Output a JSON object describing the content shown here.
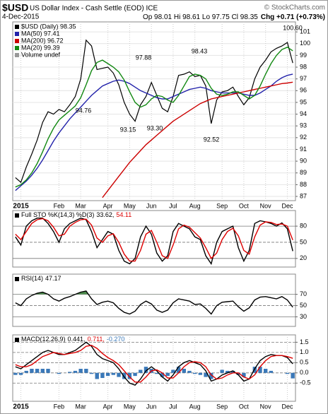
{
  "header": {
    "symbol": "$USD",
    "name": "US Dollar Index - Cash Settle (EOD) ICE",
    "copyright": "© StockCharts.com",
    "date": "4-Dec-2015",
    "ohlc": "Op 98.01 Hi 98.61 Lo 97.75 Cl 98.35",
    "change": "Chg +0.71 (+0.73%)"
  },
  "chart_data": [
    {
      "type": "line",
      "grid": true,
      "legend": "upper left",
      "legend_extra": "Volume undef",
      "categories": [
        null,
        "2015",
        null,
        null,
        null,
        null,
        null,
        null,
        "Feb",
        null,
        null,
        null,
        "Mar",
        null,
        null,
        null,
        null,
        "Apr",
        null,
        null,
        null,
        "May",
        null,
        null,
        null,
        "Jun",
        null,
        null,
        null,
        "Jul",
        null,
        null,
        null,
        "Aug",
        null,
        null,
        null,
        null,
        "Sep",
        null,
        null,
        null,
        "Oct",
        null,
        null,
        null,
        "Nov",
        null,
        null,
        null,
        "Dec",
        null
      ],
      "ylim": [
        86.64,
        101.85
      ],
      "yticks": [
        87,
        88,
        89,
        90,
        91,
        92,
        93,
        94,
        95,
        96,
        97,
        98,
        99,
        100,
        101
      ],
      "annotations": [
        "94.76",
        "97.88",
        "93.15",
        "93.30",
        "98.43",
        "92.52",
        "100.60"
      ],
      "series": [
        {
          "name": "$USD (Daily) 98.35",
          "color": "#000000",
          "values": [
            88.6,
            88.2,
            89.5,
            90.6,
            91.8,
            93.3,
            94.2,
            94.0,
            94.4,
            94.2,
            94.8,
            95.5,
            97.0,
            100.3,
            99.8,
            97.8,
            97.9,
            98.0,
            97.5,
            96.5,
            95.0,
            94.0,
            93.4,
            94.8,
            95.5,
            96.7,
            95.6,
            94.5,
            94.2,
            95.5,
            97.3,
            97.4,
            97.6,
            97.2,
            97.3,
            96.4,
            93.2,
            95.2,
            95.9,
            96.0,
            96.3,
            95.5,
            94.8,
            95.4,
            97.0,
            98.0,
            98.6,
            99.3,
            99.6,
            99.8,
            100.1,
            98.35
          ]
        },
        {
          "name": "MA(50) 97.41",
          "color": "#2222aa",
          "values": [
            87.5,
            87.9,
            88.3,
            88.8,
            89.4,
            90.1,
            90.9,
            91.7,
            92.4,
            93.0,
            93.6,
            94.1,
            94.6,
            95.1,
            95.6,
            96.0,
            96.4,
            96.6,
            96.8,
            96.9,
            96.8,
            96.6,
            96.3,
            96.0,
            95.8,
            95.6,
            95.4,
            95.3,
            95.3,
            95.5,
            95.7,
            95.9,
            96.1,
            96.2,
            96.3,
            96.2,
            96.0,
            95.9,
            95.8,
            95.8,
            95.8,
            95.8,
            95.7,
            95.6,
            95.6,
            95.8,
            96.1,
            96.4,
            96.8,
            97.1,
            97.3,
            97.41
          ]
        },
        {
          "name": "MA(200) 96.72",
          "color": "#cc0000",
          "values": [
            null,
            null,
            null,
            null,
            null,
            null,
            null,
            null,
            null,
            null,
            null,
            null,
            null,
            null,
            null,
            null,
            86.9,
            87.5,
            88.1,
            88.7,
            89.3,
            89.9,
            90.4,
            90.9,
            91.4,
            91.8,
            92.2,
            92.6,
            93.0,
            93.4,
            93.7,
            94.0,
            94.3,
            94.6,
            94.9,
            95.1,
            95.3,
            95.4,
            95.5,
            95.6,
            95.7,
            95.8,
            95.9,
            96.0,
            96.1,
            96.2,
            96.3,
            96.4,
            96.5,
            96.6,
            96.65,
            96.72
          ]
        },
        {
          "name": "MA(20) 99.39",
          "color": "#118811",
          "values": [
            87.8,
            88.0,
            88.4,
            89.0,
            89.8,
            90.8,
            91.9,
            92.8,
            93.5,
            93.9,
            94.3,
            94.7,
            95.4,
            96.5,
            97.7,
            98.4,
            98.6,
            98.3,
            98.0,
            97.6,
            96.9,
            95.9,
            95.0,
            94.6,
            94.8,
            95.3,
            95.6,
            95.5,
            95.2,
            95.0,
            95.6,
            96.4,
            97.2,
            97.4,
            97.3,
            97.0,
            96.2,
            95.7,
            95.6,
            95.7,
            95.9,
            95.9,
            95.6,
            95.3,
            95.6,
            96.4,
            97.4,
            98.3,
            99.0,
            99.5,
            99.7,
            99.39
          ]
        }
      ]
    },
    {
      "type": "line",
      "title": "Full STO %K(14,3) %D(3)",
      "ylim": [
        4,
        109
      ],
      "yticks": [
        20,
        50,
        80
      ],
      "grid": true,
      "series": [
        {
          "label": "33.62,",
          "color": "#000000",
          "values": [
            60,
            45,
            80,
            90,
            95,
            95,
            85,
            70,
            50,
            75,
            85,
            90,
            95,
            92,
            70,
            40,
            55,
            70,
            65,
            35,
            15,
            10,
            20,
            60,
            80,
            65,
            30,
            15,
            25,
            70,
            85,
            80,
            75,
            60,
            55,
            25,
            10,
            50,
            70,
            75,
            80,
            40,
            15,
            35,
            85,
            90,
            88,
            85,
            80,
            86,
            75,
            33.62
          ]
        },
        {
          "label": "54.11",
          "color": "#dd0000",
          "values": [
            65,
            55,
            70,
            85,
            92,
            94,
            90,
            78,
            62,
            65,
            80,
            87,
            92,
            93,
            82,
            58,
            50,
            62,
            66,
            50,
            28,
            15,
            15,
            35,
            65,
            72,
            50,
            25,
            20,
            45,
            75,
            82,
            78,
            68,
            58,
            40,
            20,
            30,
            55,
            70,
            76,
            62,
            35,
            28,
            60,
            82,
            88,
            87,
            83,
            84,
            80,
            54.11
          ]
        }
      ]
    },
    {
      "type": "line",
      "title": "RSI(14)",
      "ylim": [
        13,
        106
      ],
      "yticks": [
        30,
        50,
        70
      ],
      "grid": true,
      "fill_above": 70,
      "fill_color": "#4f8f4f",
      "series": [
        {
          "label": "47.17",
          "color": "#000000",
          "values": [
            55,
            50,
            62,
            68,
            72,
            74,
            70,
            62,
            58,
            63,
            66,
            70,
            74,
            76,
            62,
            52,
            56,
            58,
            55,
            45,
            38,
            35,
            40,
            52,
            58,
            53,
            42,
            38,
            42,
            55,
            62,
            60,
            58,
            52,
            53,
            45,
            35,
            50,
            56,
            57,
            58,
            48,
            40,
            46,
            60,
            65,
            66,
            64,
            62,
            66,
            60,
            47.17
          ]
        }
      ]
    },
    {
      "type": "line",
      "title": "MACD(12,26,9)",
      "ylim": [
        -1.39,
        1.86
      ],
      "yticks": [
        1.5,
        {
          "value": 1,
          "label": "1.0"
        },
        0.5,
        {
          "value": 0,
          "label": "0.0"
        },
        -0.5
      ],
      "grid": true,
      "categories": [
        null,
        "2015",
        null,
        null,
        null,
        null,
        null,
        null,
        "Feb",
        null,
        null,
        null,
        "Mar",
        null,
        null,
        null,
        null,
        "Apr",
        null,
        null,
        null,
        "May",
        null,
        null,
        null,
        "Jun",
        null,
        null,
        null,
        "Jul",
        null,
        null,
        null,
        "Aug",
        null,
        null,
        null,
        null,
        "Sep",
        null,
        null,
        null,
        "Oct",
        null,
        null,
        null,
        "Nov",
        null,
        null,
        null,
        "Dec",
        null
      ],
      "series": [
        {
          "label": "-0.270",
          "type": "bar",
          "color": "#3a78b8",
          "values": [
            -0.1,
            -0.1,
            0.1,
            0.2,
            0.2,
            0.2,
            0.2,
            0,
            -0.05,
            0,
            0.05,
            0.1,
            0.2,
            0.2,
            -0.05,
            -0.3,
            -0.25,
            -0.15,
            -0.1,
            -0.2,
            -0.3,
            -0.3,
            -0.15,
            0.15,
            0.3,
            0.2,
            -0.05,
            -0.2,
            -0.15,
            0.15,
            0.3,
            0.2,
            0.1,
            -0.05,
            -0.1,
            -0.2,
            -0.3,
            0,
            0.15,
            0.1,
            0.1,
            -0.1,
            -0.2,
            0,
            0.3,
            0.3,
            0.2,
            0.1,
            0,
            0,
            -0.05,
            -0.27
          ]
        },
        {
          "label": "0.441,",
          "color": "#000000",
          "values": [
            0.3,
            0.2,
            0.4,
            0.6,
            0.8,
            1.0,
            1.1,
            1.0,
            0.9,
            0.9,
            1.0,
            1.1,
            1.3,
            1.5,
            1.3,
            0.9,
            0.7,
            0.6,
            0.5,
            0.2,
            -0.2,
            -0.5,
            -0.6,
            -0.3,
            0.1,
            0.3,
            0.1,
            -0.2,
            -0.4,
            -0.1,
            0.3,
            0.5,
            0.6,
            0.5,
            0.4,
            0.1,
            -0.4,
            -0.3,
            -0.1,
            0.0,
            0.1,
            -0.1,
            -0.4,
            -0.3,
            0.2,
            0.6,
            0.8,
            0.9,
            0.85,
            0.85,
            0.75,
            0.441
          ]
        },
        {
          "label": "0.711,",
          "color": "#dd0000",
          "values": [
            0.4,
            0.3,
            0.3,
            0.4,
            0.6,
            0.8,
            0.9,
            1.0,
            0.95,
            0.9,
            0.95,
            1.0,
            1.1,
            1.3,
            1.35,
            1.2,
            0.95,
            0.75,
            0.6,
            0.4,
            0.1,
            -0.2,
            -0.45,
            -0.45,
            -0.2,
            0.1,
            0.15,
            0.0,
            -0.25,
            -0.25,
            0.0,
            0.3,
            0.5,
            0.55,
            0.5,
            0.3,
            -0.1,
            -0.3,
            -0.25,
            -0.1,
            0.0,
            0.0,
            -0.2,
            -0.3,
            -0.1,
            0.3,
            0.6,
            0.8,
            0.85,
            0.85,
            0.8,
            0.711
          ]
        }
      ]
    }
  ]
}
